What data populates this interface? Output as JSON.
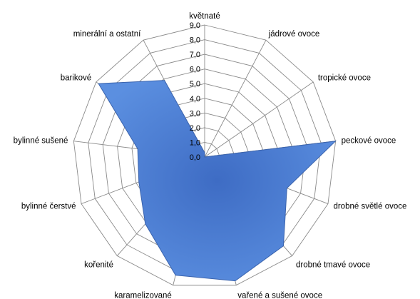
{
  "chart_data": {
    "type": "radar",
    "title": "",
    "categories": [
      "květnaté",
      "jádrové ovoce",
      "tropické ovoce",
      "peckové ovoce",
      "drobné světlé ovoce",
      "drobné tmavé ovoce",
      "vařené a sušené ovoce",
      "karamelizované",
      "kořenité",
      "bylinné čerstvé",
      "bylinné sušené",
      "barikové",
      "minerální a ostatní"
    ],
    "series": [
      {
        "values": [
          0.3,
          0.0,
          0.0,
          9.0,
          6.0,
          8.1,
          8.7,
          8.3,
          6.1,
          4.8,
          4.6,
          8.8,
          5.9
        ]
      }
    ],
    "rlim": [
      0,
      9
    ],
    "ticks": [
      "0,0",
      "1,0",
      "2,0",
      "3,0",
      "4,0",
      "5,0",
      "6,0",
      "7,0",
      "8,0",
      "9,0"
    ],
    "grid": true,
    "legend": "none",
    "colors": {
      "fill": "#4f81d6",
      "stroke": "#3a63ad",
      "grid": "#8a8a8a"
    }
  }
}
